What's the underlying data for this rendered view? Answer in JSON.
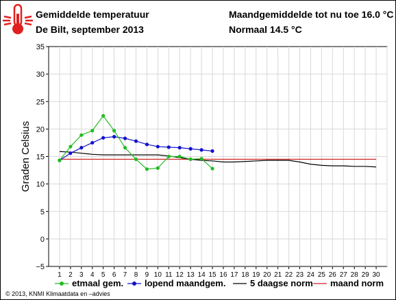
{
  "header": {
    "title": "Gemiddelde temperatuur",
    "subtitle": "De Bilt, september 2013",
    "monthly_avg_label": "Maandgemiddelde tot nu toe 16.0 °C",
    "normal_label": "Normaal 14.5 °C"
  },
  "icon": "thermometer-icon",
  "copyright": "© 2013, KNMI Klimaatdata en –advies",
  "colors": {
    "etmaal": "#22bb22",
    "lopend": "#1111cc",
    "norm5": "#000000",
    "maandnorm": "#cc2222",
    "icon": "#e02020"
  },
  "chart_data": {
    "type": "line",
    "xlabel": "",
    "ylabel": "Graden Celsius",
    "x": [
      1,
      2,
      3,
      4,
      5,
      6,
      7,
      8,
      9,
      10,
      11,
      12,
      13,
      14,
      15,
      16,
      17,
      18,
      19,
      20,
      21,
      22,
      23,
      24,
      25,
      26,
      27,
      28,
      29,
      30
    ],
    "xlim": [
      1,
      30
    ],
    "ylim": [
      -5,
      35
    ],
    "yticks": [
      -5,
      0,
      5,
      10,
      15,
      20,
      25,
      30,
      35
    ],
    "grid": true,
    "legend_position": "bottom",
    "series": [
      {
        "name": "etmaal gem.",
        "style": "line-markers",
        "x": [
          1,
          2,
          3,
          4,
          5,
          6,
          7,
          8,
          9,
          10,
          11,
          12,
          13,
          14,
          15
        ],
        "values": [
          14.3,
          16.8,
          18.9,
          19.7,
          22.4,
          19.7,
          16.6,
          14.5,
          12.7,
          12.9,
          15.0,
          15.0,
          14.5,
          14.6,
          12.8
        ]
      },
      {
        "name": "lopend maandgem.",
        "style": "line-markers",
        "x": [
          1,
          2,
          3,
          4,
          5,
          6,
          7,
          8,
          9,
          10,
          11,
          12,
          13,
          14,
          15
        ],
        "values": [
          14.3,
          15.6,
          16.6,
          17.5,
          18.4,
          18.6,
          18.3,
          17.8,
          17.2,
          16.8,
          16.7,
          16.6,
          16.4,
          16.2,
          16.0
        ]
      },
      {
        "name": "5 daagse norm",
        "style": "line",
        "x": [
          1,
          2,
          3,
          4,
          5,
          6,
          7,
          8,
          9,
          10,
          11,
          12,
          13,
          14,
          15,
          16,
          17,
          18,
          19,
          20,
          21,
          22,
          23,
          24,
          25,
          26,
          27,
          28,
          29,
          30
        ],
        "values": [
          15.9,
          15.8,
          15.6,
          15.4,
          15.3,
          15.3,
          15.3,
          15.3,
          15.3,
          15.3,
          15.1,
          14.8,
          14.5,
          14.3,
          14.2,
          14.0,
          14.0,
          14.1,
          14.2,
          14.3,
          14.3,
          14.3,
          14.0,
          13.6,
          13.4,
          13.3,
          13.3,
          13.2,
          13.2,
          13.1
        ]
      },
      {
        "name": "maand norm",
        "style": "line",
        "x": [
          1,
          30
        ],
        "values": [
          14.5,
          14.5
        ]
      }
    ]
  }
}
